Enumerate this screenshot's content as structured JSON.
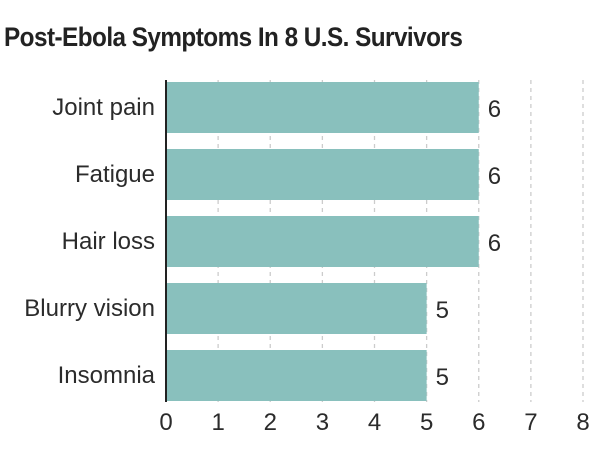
{
  "chart_data": {
    "type": "bar",
    "orientation": "horizontal",
    "title": "Post-Ebola Symptoms In 8 U.S. Survivors",
    "categories": [
      "Joint pain",
      "Fatigue",
      "Hair loss",
      "Blurry vision",
      "Insomnia"
    ],
    "values": [
      6,
      6,
      6,
      5,
      5
    ],
    "xlim": [
      0,
      8
    ],
    "x_ticks": [
      "0",
      "1",
      "2",
      "3",
      "4",
      "5",
      "6",
      "7",
      "8"
    ],
    "grid": "vertical dashed",
    "bar_color": "#89c0bd",
    "axis_color": "#222222",
    "grid_color": "#cccccc"
  }
}
